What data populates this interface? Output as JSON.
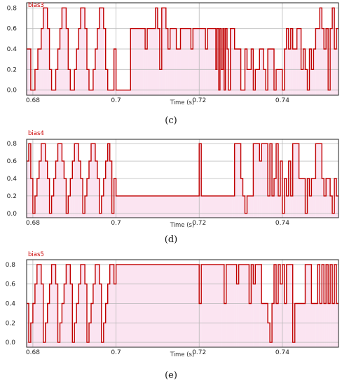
{
  "chart_data": [
    {
      "type": "line",
      "series_name": "bias3",
      "caption": "(c)",
      "xlabel": "Time (s)",
      "xlim": [
        0.6785,
        0.7535
      ],
      "ylim": [
        -0.05,
        0.85
      ],
      "xticks": [
        0.68,
        0.7,
        0.72,
        0.74
      ],
      "xtick_labels": [
        "0.68",
        "0.7",
        "0.72",
        "0.74"
      ],
      "yticks": [
        0.0,
        0.2,
        0.4,
        0.6,
        0.8
      ],
      "ytick_labels": [
        "0.0",
        "0.2",
        "0.4",
        "0.6",
        "0.8"
      ],
      "grid": true,
      "line_color": "#c00000",
      "shade_color": "#f7cde6",
      "steps": [
        [
          0.6785,
          0.4
        ],
        [
          0.6795,
          0.0
        ],
        [
          0.6805,
          0.2
        ],
        [
          0.6812,
          0.4
        ],
        [
          0.682,
          0.6
        ],
        [
          0.6825,
          0.8
        ],
        [
          0.6835,
          0.6
        ],
        [
          0.684,
          0.2
        ],
        [
          0.6845,
          0.0
        ],
        [
          0.6855,
          0.2
        ],
        [
          0.686,
          0.4
        ],
        [
          0.6865,
          0.6
        ],
        [
          0.687,
          0.8
        ],
        [
          0.688,
          0.6
        ],
        [
          0.6885,
          0.2
        ],
        [
          0.689,
          0.0
        ],
        [
          0.69,
          0.2
        ],
        [
          0.6905,
          0.4
        ],
        [
          0.691,
          0.6
        ],
        [
          0.6915,
          0.8
        ],
        [
          0.6925,
          0.6
        ],
        [
          0.693,
          0.2
        ],
        [
          0.6935,
          0.0
        ],
        [
          0.6945,
          0.2
        ],
        [
          0.695,
          0.4
        ],
        [
          0.6955,
          0.6
        ],
        [
          0.696,
          0.8
        ],
        [
          0.697,
          0.6
        ],
        [
          0.6975,
          0.2
        ],
        [
          0.698,
          0.0
        ],
        [
          0.6995,
          0.4
        ],
        [
          0.7,
          0.0
        ],
        [
          0.7025,
          0.0
        ],
        [
          0.7035,
          0.6
        ],
        [
          0.7065,
          0.6
        ],
        [
          0.707,
          0.4
        ],
        [
          0.7075,
          0.6
        ],
        [
          0.709,
          0.6
        ],
        [
          0.7095,
          0.8
        ],
        [
          0.71,
          0.6
        ],
        [
          0.7105,
          0.2
        ],
        [
          0.711,
          0.8
        ],
        [
          0.712,
          0.6
        ],
        [
          0.7125,
          0.4
        ],
        [
          0.713,
          0.6
        ],
        [
          0.714,
          0.6
        ],
        [
          0.7145,
          0.4
        ],
        [
          0.7155,
          0.6
        ],
        [
          0.716,
          0.6
        ],
        [
          0.7175,
          0.6
        ],
        [
          0.718,
          0.4
        ],
        [
          0.7185,
          0.6
        ],
        [
          0.721,
          0.6
        ],
        [
          0.7215,
          0.4
        ],
        [
          0.722,
          0.6
        ],
        [
          0.7235,
          0.6
        ],
        [
          0.724,
          0.2
        ],
        [
          0.7243,
          0.6
        ],
        [
          0.7247,
          0.0
        ],
        [
          0.725,
          0.6
        ],
        [
          0.7253,
          0.2
        ],
        [
          0.7257,
          0.6
        ],
        [
          0.726,
          0.0
        ],
        [
          0.7263,
          0.6
        ],
        [
          0.7267,
          0.4
        ],
        [
          0.727,
          0.0
        ],
        [
          0.7275,
          0.6
        ],
        [
          0.728,
          0.6
        ],
        [
          0.7285,
          0.4
        ],
        [
          0.7295,
          0.4
        ],
        [
          0.73,
          0.0
        ],
        [
          0.731,
          0.4
        ],
        [
          0.7315,
          0.2
        ],
        [
          0.7325,
          0.4
        ],
        [
          0.733,
          0.0
        ],
        [
          0.7335,
          0.2
        ],
        [
          0.7345,
          0.4
        ],
        [
          0.7355,
          0.2
        ],
        [
          0.736,
          0.0
        ],
        [
          0.7365,
          0.4
        ],
        [
          0.7375,
          0.4
        ],
        [
          0.738,
          0.0
        ],
        [
          0.7385,
          0.2
        ],
        [
          0.7395,
          0.2
        ],
        [
          0.74,
          0.0
        ],
        [
          0.7405,
          0.4
        ],
        [
          0.741,
          0.6
        ],
        [
          0.7415,
          0.4
        ],
        [
          0.742,
          0.6
        ],
        [
          0.7425,
          0.4
        ],
        [
          0.7435,
          0.6
        ],
        [
          0.744,
          0.6
        ],
        [
          0.7445,
          0.2
        ],
        [
          0.745,
          0.4
        ],
        [
          0.7455,
          0.2
        ],
        [
          0.746,
          0.0
        ],
        [
          0.7465,
          0.4
        ],
        [
          0.747,
          0.2
        ],
        [
          0.7475,
          0.4
        ],
        [
          0.748,
          0.6
        ],
        [
          0.749,
          0.8
        ],
        [
          0.7495,
          0.6
        ],
        [
          0.75,
          0.4
        ],
        [
          0.7505,
          0.6
        ],
        [
          0.751,
          0.0
        ],
        [
          0.7515,
          0.6
        ],
        [
          0.752,
          0.8
        ],
        [
          0.7525,
          0.4
        ],
        [
          0.753,
          0.6
        ]
      ]
    },
    {
      "type": "line",
      "series_name": "bias4",
      "caption": "(d)",
      "xlabel": "Time (s)",
      "xlim": [
        0.6785,
        0.7535
      ],
      "ylim": [
        -0.05,
        0.85
      ],
      "xticks": [
        0.68,
        0.7,
        0.72,
        0.74
      ],
      "xtick_labels": [
        "0.68",
        "0.7",
        "0.72",
        "0.74"
      ],
      "yticks": [
        0.0,
        0.2,
        0.4,
        0.6,
        0.8
      ],
      "ytick_labels": [
        "0.0",
        "0.2",
        "0.4",
        "0.6",
        "0.8"
      ],
      "grid": true,
      "line_color": "#c00000",
      "shade_color": "#f7cde6",
      "steps": [
        [
          0.6785,
          0.6
        ],
        [
          0.679,
          0.8
        ],
        [
          0.6795,
          0.4
        ],
        [
          0.68,
          0.0
        ],
        [
          0.6805,
          0.2
        ],
        [
          0.681,
          0.4
        ],
        [
          0.6815,
          0.6
        ],
        [
          0.682,
          0.8
        ],
        [
          0.683,
          0.6
        ],
        [
          0.6835,
          0.4
        ],
        [
          0.684,
          0.0
        ],
        [
          0.6845,
          0.2
        ],
        [
          0.685,
          0.4
        ],
        [
          0.6855,
          0.6
        ],
        [
          0.686,
          0.8
        ],
        [
          0.687,
          0.6
        ],
        [
          0.6875,
          0.4
        ],
        [
          0.688,
          0.0
        ],
        [
          0.6885,
          0.2
        ],
        [
          0.689,
          0.4
        ],
        [
          0.6895,
          0.6
        ],
        [
          0.69,
          0.8
        ],
        [
          0.691,
          0.6
        ],
        [
          0.6915,
          0.4
        ],
        [
          0.692,
          0.0
        ],
        [
          0.6925,
          0.2
        ],
        [
          0.693,
          0.4
        ],
        [
          0.6935,
          0.6
        ],
        [
          0.694,
          0.8
        ],
        [
          0.695,
          0.6
        ],
        [
          0.6955,
          0.4
        ],
        [
          0.696,
          0.0
        ],
        [
          0.6965,
          0.2
        ],
        [
          0.697,
          0.4
        ],
        [
          0.6975,
          0.6
        ],
        [
          0.698,
          0.8
        ],
        [
          0.6985,
          0.6
        ],
        [
          0.699,
          0.0
        ],
        [
          0.6995,
          0.4
        ],
        [
          0.7,
          0.2
        ],
        [
          0.7195,
          0.2
        ],
        [
          0.72,
          0.8
        ],
        [
          0.7205,
          0.2
        ],
        [
          0.728,
          0.2
        ],
        [
          0.7285,
          0.8
        ],
        [
          0.7295,
          0.8
        ],
        [
          0.73,
          0.4
        ],
        [
          0.7305,
          0.2
        ],
        [
          0.731,
          0.0
        ],
        [
          0.7315,
          0.2
        ],
        [
          0.7325,
          0.2
        ],
        [
          0.733,
          0.8
        ],
        [
          0.734,
          0.8
        ],
        [
          0.7345,
          0.6
        ],
        [
          0.735,
          0.8
        ],
        [
          0.736,
          0.8
        ],
        [
          0.7365,
          0.2
        ],
        [
          0.737,
          0.8
        ],
        [
          0.7375,
          0.2
        ],
        [
          0.738,
          0.4
        ],
        [
          0.7385,
          0.8
        ],
        [
          0.739,
          0.2
        ],
        [
          0.7395,
          0.6
        ],
        [
          0.74,
          0.0
        ],
        [
          0.7405,
          0.4
        ],
        [
          0.741,
          0.2
        ],
        [
          0.7415,
          0.6
        ],
        [
          0.742,
          0.2
        ],
        [
          0.7425,
          0.8
        ],
        [
          0.7435,
          0.8
        ],
        [
          0.744,
          0.4
        ],
        [
          0.745,
          0.4
        ],
        [
          0.7455,
          0.0
        ],
        [
          0.746,
          0.4
        ],
        [
          0.7465,
          0.2
        ],
        [
          0.747,
          0.4
        ],
        [
          0.7475,
          0.4
        ],
        [
          0.748,
          0.8
        ],
        [
          0.749,
          0.8
        ],
        [
          0.7495,
          0.4
        ],
        [
          0.75,
          0.2
        ],
        [
          0.7505,
          0.4
        ],
        [
          0.751,
          0.4
        ],
        [
          0.7515,
          0.2
        ],
        [
          0.752,
          0.0
        ],
        [
          0.7525,
          0.4
        ],
        [
          0.753,
          0.2
        ]
      ]
    },
    {
      "type": "line",
      "series_name": "bias5",
      "caption": "(e)",
      "xlabel": "Time (s)",
      "xlim": [
        0.6785,
        0.7535
      ],
      "ylim": [
        -0.05,
        0.85
      ],
      "xticks": [
        0.68,
        0.7,
        0.72,
        0.74
      ],
      "xtick_labels": [
        "0.68",
        "0.7",
        "0.72",
        "0.74"
      ],
      "yticks": [
        0.0,
        0.2,
        0.4,
        0.6,
        0.8
      ],
      "ytick_labels": [
        "0.0",
        "0.2",
        "0.4",
        "0.6",
        "0.8"
      ],
      "grid": true,
      "line_color": "#c00000",
      "shade_color": "#f7cde6",
      "steps": [
        [
          0.6785,
          0.4
        ],
        [
          0.679,
          0.0
        ],
        [
          0.6795,
          0.2
        ],
        [
          0.68,
          0.4
        ],
        [
          0.6805,
          0.6
        ],
        [
          0.681,
          0.8
        ],
        [
          0.682,
          0.6
        ],
        [
          0.6825,
          0.0
        ],
        [
          0.683,
          0.2
        ],
        [
          0.6835,
          0.4
        ],
        [
          0.684,
          0.6
        ],
        [
          0.6845,
          0.8
        ],
        [
          0.6855,
          0.6
        ],
        [
          0.686,
          0.0
        ],
        [
          0.6865,
          0.2
        ],
        [
          0.687,
          0.4
        ],
        [
          0.6875,
          0.6
        ],
        [
          0.688,
          0.8
        ],
        [
          0.689,
          0.6
        ],
        [
          0.6895,
          0.0
        ],
        [
          0.69,
          0.2
        ],
        [
          0.6905,
          0.4
        ],
        [
          0.691,
          0.6
        ],
        [
          0.6915,
          0.8
        ],
        [
          0.6925,
          0.6
        ],
        [
          0.693,
          0.0
        ],
        [
          0.6935,
          0.2
        ],
        [
          0.694,
          0.4
        ],
        [
          0.6945,
          0.6
        ],
        [
          0.695,
          0.8
        ],
        [
          0.696,
          0.6
        ],
        [
          0.6965,
          0.0
        ],
        [
          0.697,
          0.2
        ],
        [
          0.6975,
          0.4
        ],
        [
          0.698,
          0.6
        ],
        [
          0.6985,
          0.8
        ],
        [
          0.6995,
          0.6
        ],
        [
          0.7,
          0.8
        ],
        [
          0.7195,
          0.8
        ],
        [
          0.72,
          0.4
        ],
        [
          0.7205,
          0.8
        ],
        [
          0.7255,
          0.8
        ],
        [
          0.726,
          0.4
        ],
        [
          0.7265,
          0.8
        ],
        [
          0.7285,
          0.8
        ],
        [
          0.729,
          0.6
        ],
        [
          0.7295,
          0.8
        ],
        [
          0.7315,
          0.8
        ],
        [
          0.732,
          0.4
        ],
        [
          0.7325,
          0.8
        ],
        [
          0.733,
          0.6
        ],
        [
          0.7335,
          0.8
        ],
        [
          0.7345,
          0.8
        ],
        [
          0.735,
          0.4
        ],
        [
          0.736,
          0.4
        ],
        [
          0.7365,
          0.2
        ],
        [
          0.737,
          0.0
        ],
        [
          0.7375,
          0.4
        ],
        [
          0.738,
          0.8
        ],
        [
          0.7385,
          0.4
        ],
        [
          0.739,
          0.8
        ],
        [
          0.7395,
          0.6
        ],
        [
          0.74,
          0.8
        ],
        [
          0.7405,
          0.4
        ],
        [
          0.741,
          0.8
        ],
        [
          0.742,
          0.8
        ],
        [
          0.7425,
          0.0
        ],
        [
          0.743,
          0.4
        ],
        [
          0.745,
          0.4
        ],
        [
          0.7455,
          0.8
        ],
        [
          0.7465,
          0.8
        ],
        [
          0.747,
          0.4
        ],
        [
          0.748,
          0.4
        ],
        [
          0.7485,
          0.8
        ],
        [
          0.749,
          0.4
        ],
        [
          0.7495,
          0.8
        ],
        [
          0.75,
          0.4
        ],
        [
          0.7505,
          0.8
        ],
        [
          0.751,
          0.4
        ],
        [
          0.7515,
          0.8
        ],
        [
          0.752,
          0.4
        ],
        [
          0.7525,
          0.8
        ],
        [
          0.753,
          0.4
        ]
      ]
    }
  ]
}
